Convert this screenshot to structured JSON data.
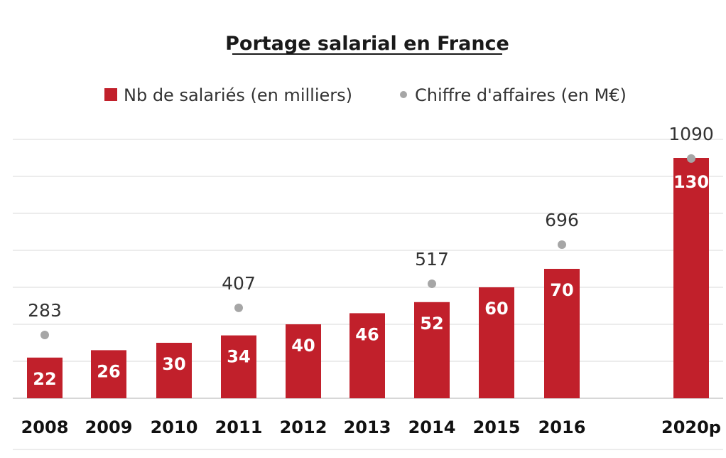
{
  "chart_data": {
    "type": "bar",
    "title": "Portage salarial en France",
    "categories": [
      "2008",
      "2009",
      "2010",
      "2011",
      "2012",
      "2013",
      "2014",
      "2015",
      "2016",
      "2020p"
    ],
    "series": [
      {
        "name": "Nb de salariés (en milliers)",
        "type": "bar",
        "color": "#c1202b",
        "values": [
          22,
          26,
          30,
          34,
          40,
          46,
          52,
          60,
          70,
          130
        ]
      },
      {
        "name": "Chiffre d'affaires (en M€)",
        "type": "scatter",
        "color": "#a6a6a6",
        "values": [
          283,
          null,
          null,
          407,
          null,
          null,
          517,
          null,
          696,
          1090
        ]
      }
    ],
    "legend_position": "top",
    "grid": true
  }
}
